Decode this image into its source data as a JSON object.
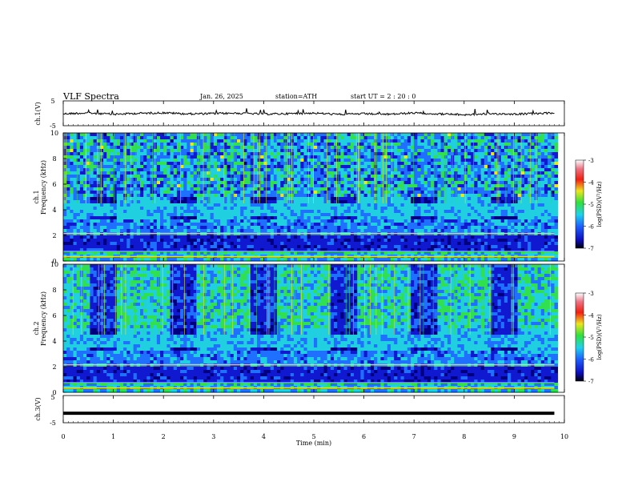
{
  "header": {
    "title": "VLF  Spectra",
    "date": "Jan. 26, 2025",
    "station": "station=ATH",
    "start": "start  UT  =   2 : 20 : 0"
  },
  "chart_data": [
    {
      "type": "line",
      "panel": "ch1-waveform",
      "ylabel": "ch.1(V)",
      "yticks": [
        "5",
        "-5"
      ],
      "ylim": [
        -5,
        5
      ],
      "x": [
        0,
        0.5,
        1,
        1.5,
        2,
        2.5,
        3,
        3.5,
        4,
        4.5,
        5,
        5.5,
        6,
        6.5,
        7,
        7.5,
        8,
        8.5,
        9,
        9.5,
        9.8
      ],
      "values": [
        0.4,
        -0.3,
        0.8,
        0.0,
        -0.4,
        0.5,
        0.2,
        -0.1,
        0.6,
        0.3,
        -0.2,
        0.9,
        0.4,
        0.8,
        -0.3,
        0.5,
        1.2,
        0.3,
        0.6,
        0.2,
        -0.4
      ]
    },
    {
      "type": "heatmap",
      "panel": "ch1-spectrogram",
      "ylabel_top": "ch.1",
      "ylabel": "Frequency (kHz)",
      "yticks": [
        "10",
        "8",
        "6",
        "4",
        "2",
        "0"
      ],
      "ylim": [
        0,
        10
      ],
      "colorbar": {
        "label": "log(PSD)(V²/Hz)",
        "ticks": [
          "-3",
          "-4",
          "-5",
          "-6",
          "-7"
        ],
        "range": [
          -7,
          -3
        ]
      }
    },
    {
      "type": "heatmap",
      "panel": "ch2-spectrogram",
      "ylabel_top": "ch.2",
      "ylabel": "Frequency (kHz)",
      "yticks": [
        "10",
        "8",
        "6",
        "4",
        "2",
        "0"
      ],
      "ylim": [
        0,
        10
      ],
      "colorbar": {
        "label": "log(PSD)(V²/Hz)",
        "ticks": [
          "-3",
          "-4",
          "-5",
          "-6",
          "-7"
        ],
        "range": [
          -7,
          -3
        ]
      }
    },
    {
      "type": "line",
      "panel": "ch3-waveform",
      "ylabel": "ch.3(V)",
      "yticks": [
        "5",
        "-5"
      ],
      "ylim": [
        -5,
        5
      ],
      "x": [
        0,
        9.8
      ],
      "values": [
        -1.5,
        -1.5
      ]
    }
  ],
  "xaxis": {
    "label": "Time  (min)",
    "ticks": [
      "0",
      "1",
      "2",
      "3",
      "4",
      "5",
      "6",
      "7",
      "8",
      "9",
      "10"
    ],
    "xlim": [
      0,
      10
    ]
  },
  "colors": {
    "low": "#1a2fd6",
    "mid": "#2fd0c0",
    "high": "#44e04a",
    "peak": "#e0e020"
  }
}
